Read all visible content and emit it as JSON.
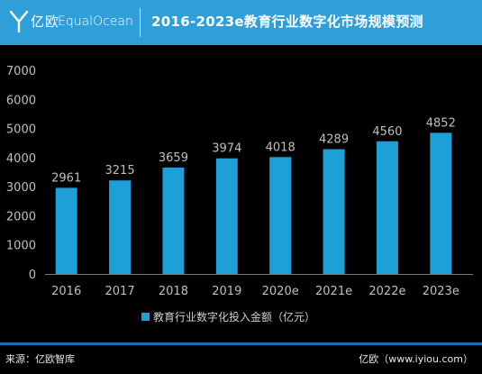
{
  "header": {
    "logo_cn": "亿欧",
    "logo_en": "EqualOcean",
    "title": "2016-2023e教育行业数字化市场规模预测"
  },
  "footer": {
    "source": "来源：亿欧智库",
    "site": "亿欧（www.iyiou.com）"
  },
  "colors": {
    "header_bg": "#2f9fd9",
    "bar": "#1d9fd8",
    "background": "#000000",
    "text": "#bfbfbf"
  },
  "chart_data": {
    "type": "bar",
    "categories": [
      "2016",
      "2017",
      "2018",
      "2019",
      "2020e",
      "2021e",
      "2022e",
      "2023e"
    ],
    "series": [
      {
        "name": "教育行业数字化投入金额（亿元）",
        "values": [
          2961,
          3215,
          3659,
          3974,
          4018,
          4289,
          4560,
          4852
        ]
      }
    ],
    "ylim": [
      0,
      7000
    ],
    "yticks": [
      0,
      1000,
      2000,
      3000,
      4000,
      5000,
      6000,
      7000
    ],
    "grid": false,
    "legend_position": "bottom"
  }
}
